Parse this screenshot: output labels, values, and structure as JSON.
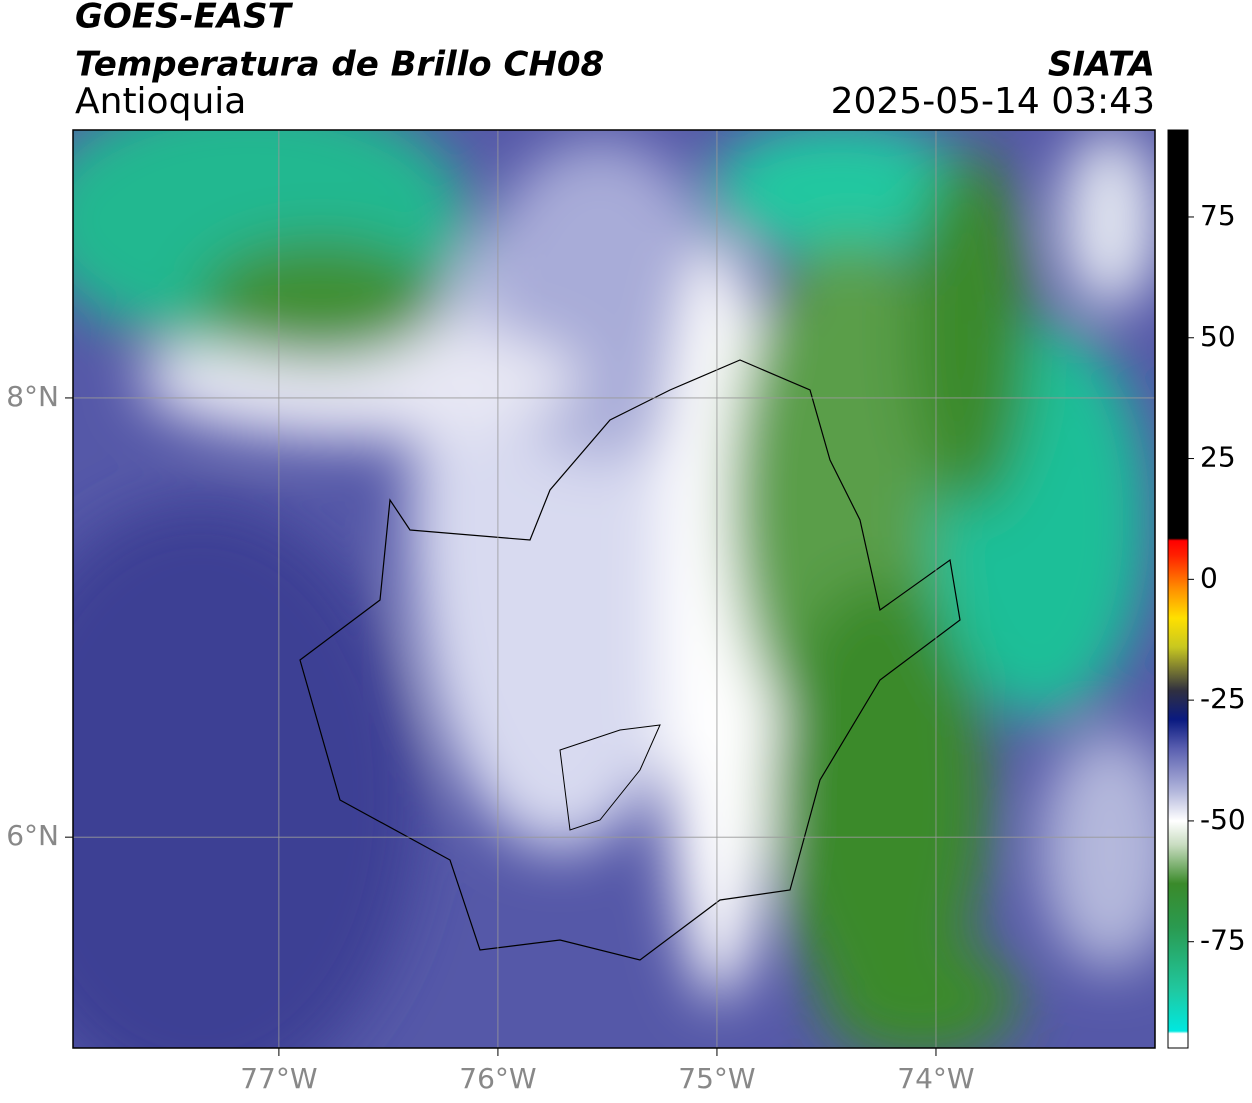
{
  "header": {
    "title": "GOES-EAST",
    "subtitle": "Temperatura de Brillo CH08",
    "region": "Antioquia",
    "source": "SIATA",
    "timestamp": "2025-05-14 03:43"
  },
  "map": {
    "xlim": [
      -77.94,
      -73.0
    ],
    "ylim": [
      5.04,
      9.22
    ],
    "xticks": [
      {
        "value": -77,
        "label": "77°W"
      },
      {
        "value": -76,
        "label": "76°W"
      },
      {
        "value": -75,
        "label": "75°W"
      },
      {
        "value": -74,
        "label": "74°W"
      }
    ],
    "yticks": [
      {
        "value": 8,
        "label": "8°N"
      },
      {
        "value": 6,
        "label": "6°N"
      }
    ],
    "grid": true
  },
  "colorbar": {
    "lim": [
      -97,
      93
    ],
    "ticks": [
      75,
      50,
      25,
      0,
      -25,
      -50,
      -75
    ],
    "stops": [
      {
        "value": -97,
        "color": "#ffffff"
      },
      {
        "value": -94,
        "color": "#ffffff"
      },
      {
        "value": -93.5,
        "color": "#00e8e0"
      },
      {
        "value": -85,
        "color": "#20c8a0"
      },
      {
        "value": -72,
        "color": "#2a9a50"
      },
      {
        "value": -63,
        "color": "#3a8a2a"
      },
      {
        "value": -55,
        "color": "#c8dcc0"
      },
      {
        "value": -50,
        "color": "#ffffff"
      },
      {
        "value": -44,
        "color": "#b4b8dc"
      },
      {
        "value": -35,
        "color": "#5a5fb0"
      },
      {
        "value": -29,
        "color": "#0a1a80"
      },
      {
        "value": -23,
        "color": "#303040"
      },
      {
        "value": -14,
        "color": "#c8c820"
      },
      {
        "value": -8,
        "color": "#ffe000"
      },
      {
        "value": -2,
        "color": "#ff9000"
      },
      {
        "value": 5,
        "color": "#ff2000"
      },
      {
        "value": 8,
        "color": "#ff0000"
      },
      {
        "value": 8.5,
        "color": "#000000"
      },
      {
        "value": 93,
        "color": "#000000"
      }
    ]
  }
}
